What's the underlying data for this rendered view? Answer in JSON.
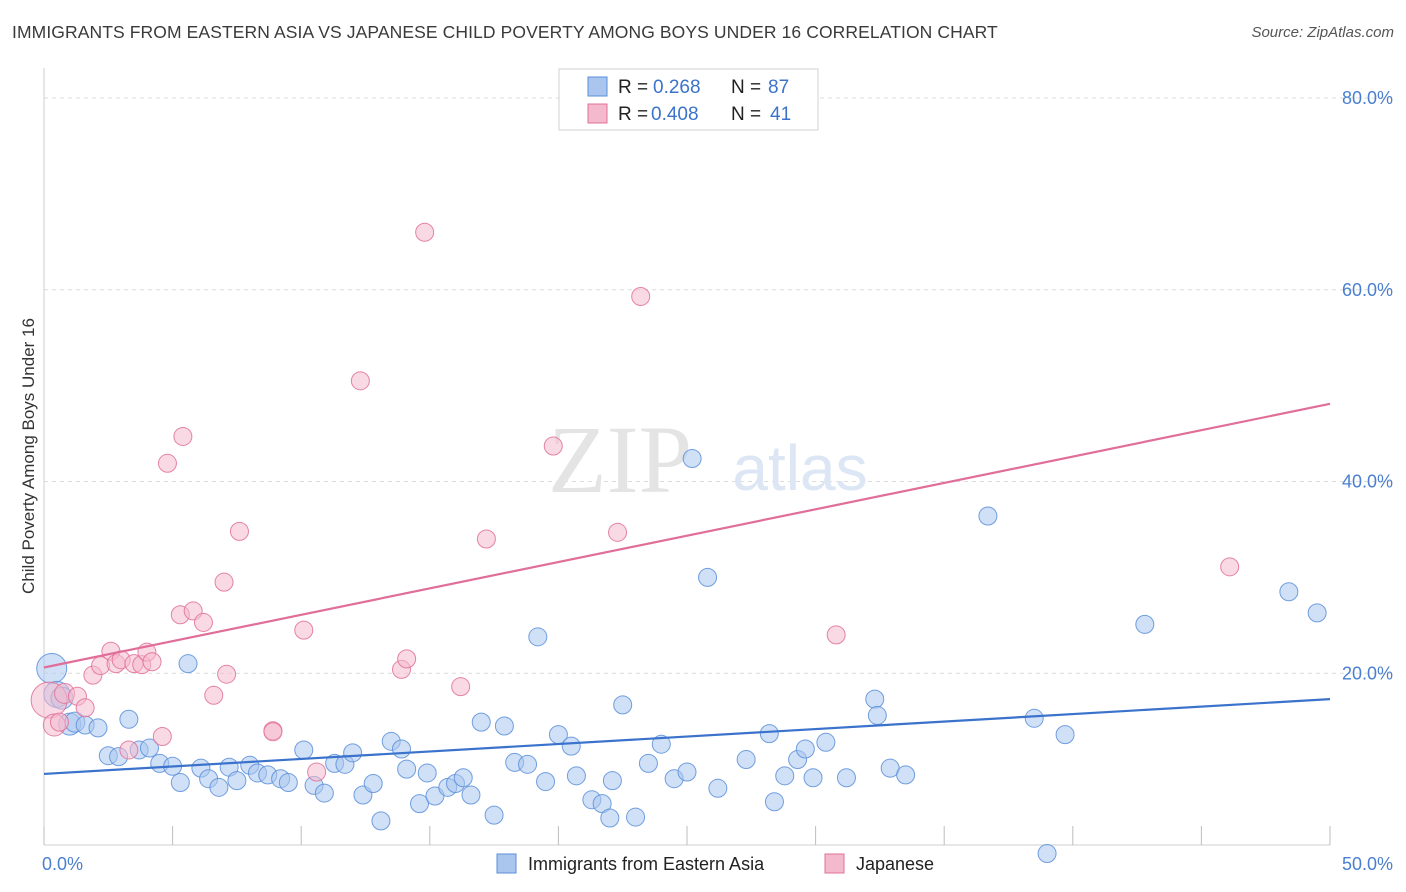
{
  "title": "IMMIGRANTS FROM EASTERN ASIA VS JAPANESE CHILD POVERTY AMONG BOYS UNDER 16 CORRELATION CHART",
  "source": "Source: ZipAtlas.com",
  "watermark": {
    "zip": "ZIP",
    "atlas": "atlas"
  },
  "colors": {
    "blue": "#5b8fd9",
    "blue_fill": "#aac6ee",
    "pink": "#e07099",
    "pink_fill": "#f4b9cd",
    "blue_line": "#3a72cc",
    "pink_line": "#e06e98",
    "axis_text": "#4a7fcf"
  },
  "legend": {
    "r_label": "R =",
    "n_label": "N =",
    "series": [
      {
        "r": "0.268",
        "n": "87"
      },
      {
        "r": "0.408",
        "n": "41"
      }
    ]
  },
  "chart_data": {
    "type": "scatter",
    "title": "IMMIGRANTS FROM EASTERN ASIA VS JAPANESE CHILD POVERTY AMONG BOYS UNDER 16 CORRELATION CHART",
    "xlabel": "",
    "ylabel": "Child Poverty Among Boys Under 16",
    "xlim": [
      0,
      50
    ],
    "ylim": [
      0,
      80
    ],
    "x_tick_labels": [
      "0.0%",
      "50.0%"
    ],
    "y_tick_labels": [
      "20.0%",
      "40.0%",
      "60.0%",
      "80.0%"
    ],
    "y_ticks": [
      20,
      40,
      60,
      80
    ],
    "series": [
      {
        "name": "Immigrants from Eastern Asia",
        "trend": [
          [
            0,
            9.5
          ],
          [
            50,
            17.3
          ]
        ],
        "points": [
          [
            0.3,
            20.5
          ],
          [
            0.5,
            17.8
          ],
          [
            0.7,
            17.4
          ],
          [
            1.0,
            14.7
          ],
          [
            1.2,
            14.9
          ],
          [
            1.6,
            14.6
          ],
          [
            2.1,
            14.3
          ],
          [
            2.5,
            11.4
          ],
          [
            2.9,
            11.3
          ],
          [
            3.3,
            15.2
          ],
          [
            3.7,
            12.0
          ],
          [
            4.1,
            12.2
          ],
          [
            4.5,
            10.6
          ],
          [
            5.0,
            10.3
          ],
          [
            5.3,
            8.6
          ],
          [
            5.6,
            21.0
          ],
          [
            6.1,
            10.1
          ],
          [
            6.4,
            9.0
          ],
          [
            6.8,
            8.1
          ],
          [
            7.2,
            10.2
          ],
          [
            7.5,
            8.8
          ],
          [
            8.0,
            10.4
          ],
          [
            8.3,
            9.6
          ],
          [
            8.7,
            9.4
          ],
          [
            9.2,
            9.0
          ],
          [
            9.5,
            8.6
          ],
          [
            10.1,
            12.0
          ],
          [
            10.5,
            8.3
          ],
          [
            10.9,
            7.5
          ],
          [
            11.3,
            10.6
          ],
          [
            11.7,
            10.5
          ],
          [
            12.0,
            11.7
          ],
          [
            12.4,
            7.3
          ],
          [
            12.8,
            8.5
          ],
          [
            13.1,
            4.6
          ],
          [
            13.5,
            12.9
          ],
          [
            13.9,
            12.1
          ],
          [
            14.1,
            10.0
          ],
          [
            14.6,
            6.4
          ],
          [
            14.9,
            9.6
          ],
          [
            15.2,
            7.2
          ],
          [
            15.7,
            8.1
          ],
          [
            16.0,
            8.5
          ],
          [
            16.3,
            9.1
          ],
          [
            16.6,
            7.3
          ],
          [
            17.0,
            14.9
          ],
          [
            17.5,
            5.2
          ],
          [
            17.9,
            14.5
          ],
          [
            18.3,
            10.7
          ],
          [
            18.8,
            10.5
          ],
          [
            19.2,
            23.8
          ],
          [
            19.5,
            8.7
          ],
          [
            20.0,
            13.6
          ],
          [
            20.5,
            12.4
          ],
          [
            20.7,
            9.3
          ],
          [
            21.3,
            6.8
          ],
          [
            21.7,
            6.4
          ],
          [
            22.0,
            4.9
          ],
          [
            22.1,
            8.8
          ],
          [
            22.5,
            16.7
          ],
          [
            23.0,
            5.0
          ],
          [
            23.5,
            10.6
          ],
          [
            24.0,
            12.6
          ],
          [
            24.5,
            9.0
          ],
          [
            25.0,
            9.7
          ],
          [
            25.2,
            42.4
          ],
          [
            25.8,
            30.0
          ],
          [
            26.2,
            8.0
          ],
          [
            27.3,
            11.0
          ],
          [
            28.2,
            13.7
          ],
          [
            28.4,
            6.6
          ],
          [
            28.8,
            9.3
          ],
          [
            29.3,
            11.0
          ],
          [
            29.6,
            12.1
          ],
          [
            29.9,
            9.1
          ],
          [
            30.4,
            12.8
          ],
          [
            31.2,
            9.1
          ],
          [
            32.3,
            17.3
          ],
          [
            32.4,
            15.6
          ],
          [
            32.9,
            10.1
          ],
          [
            33.5,
            9.4
          ],
          [
            36.7,
            36.4
          ],
          [
            38.5,
            15.3
          ],
          [
            39.0,
            1.2
          ],
          [
            39.7,
            13.6
          ],
          [
            42.8,
            25.1
          ],
          [
            48.4,
            28.5
          ],
          [
            49.5,
            26.3
          ]
        ],
        "sizes": [
          26,
          22,
          18,
          18,
          16,
          14,
          14,
          14,
          14,
          14,
          14,
          14,
          14,
          14,
          14,
          14,
          14,
          14,
          14,
          14,
          14,
          14,
          14,
          14,
          14,
          14,
          14,
          14,
          14,
          14,
          14,
          14,
          14,
          14,
          14,
          14,
          14,
          14,
          14,
          14,
          14,
          14,
          14,
          14,
          14,
          14,
          14,
          14,
          14,
          14,
          14,
          14,
          14,
          14,
          14,
          14,
          14,
          14,
          14,
          14,
          14,
          14,
          14,
          14,
          14,
          14,
          14,
          14,
          14,
          14,
          14,
          14,
          14,
          14,
          14,
          14,
          14,
          14,
          14,
          14,
          14,
          14,
          14,
          14,
          14,
          14,
          14,
          14
        ]
      },
      {
        "name": "Japanese",
        "trend": [
          [
            0,
            20.6
          ],
          [
            50,
            48.1
          ]
        ],
        "points": [
          [
            0.2,
            17.2
          ],
          [
            0.4,
            14.6
          ],
          [
            0.8,
            17.9
          ],
          [
            1.3,
            17.6
          ],
          [
            1.6,
            16.4
          ],
          [
            1.9,
            19.8
          ],
          [
            2.2,
            20.8
          ],
          [
            2.6,
            22.3
          ],
          [
            2.8,
            21.0
          ],
          [
            3.0,
            21.4
          ],
          [
            3.3,
            12.0
          ],
          [
            3.5,
            21.0
          ],
          [
            3.8,
            20.9
          ],
          [
            4.0,
            22.2
          ],
          [
            4.2,
            21.2
          ],
          [
            4.6,
            13.4
          ],
          [
            4.8,
            41.9
          ],
          [
            5.3,
            26.1
          ],
          [
            5.4,
            44.7
          ],
          [
            5.8,
            26.5
          ],
          [
            6.2,
            25.3
          ],
          [
            6.6,
            17.7
          ],
          [
            7.0,
            29.5
          ],
          [
            7.1,
            19.9
          ],
          [
            7.6,
            34.8
          ],
          [
            8.9,
            14.0
          ],
          [
            8.9,
            13.9
          ],
          [
            10.1,
            24.5
          ],
          [
            10.6,
            9.7
          ],
          [
            12.3,
            50.5
          ],
          [
            13.9,
            20.4
          ],
          [
            14.1,
            21.5
          ],
          [
            14.8,
            66.0
          ],
          [
            16.2,
            18.6
          ],
          [
            17.2,
            34.0
          ],
          [
            19.8,
            43.7
          ],
          [
            22.3,
            34.7
          ],
          [
            23.2,
            59.3
          ],
          [
            30.8,
            24.0
          ],
          [
            46.1,
            31.1
          ],
          [
            0.6,
            14.9
          ]
        ],
        "sizes": [
          32,
          18,
          16,
          14,
          14,
          14,
          14,
          14,
          14,
          14,
          14,
          14,
          14,
          14,
          14,
          14,
          14,
          14,
          14,
          14,
          14,
          14,
          14,
          14,
          14,
          14,
          14,
          14,
          14,
          14,
          14,
          14,
          14,
          14,
          14,
          14,
          14,
          14,
          14,
          14,
          14
        ]
      }
    ]
  }
}
